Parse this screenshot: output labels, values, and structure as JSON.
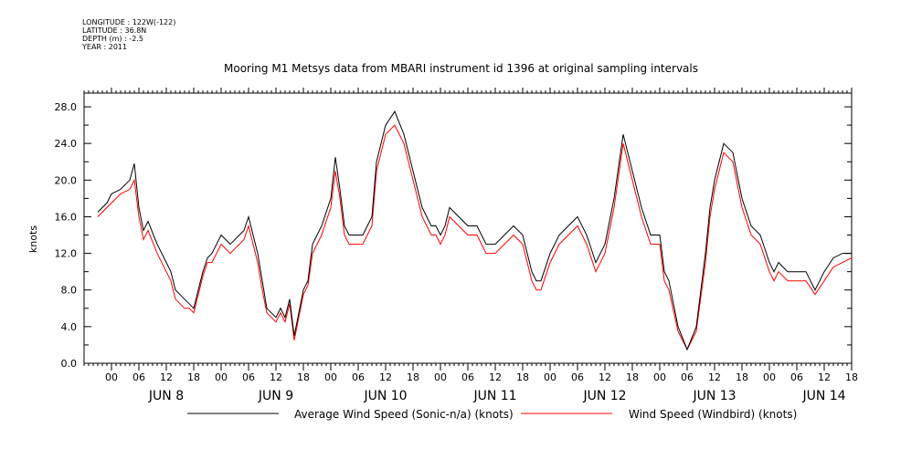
{
  "header": {
    "longitude": "LONGITUDE : 122W(-122)",
    "latitude": "LATITUDE : 36.8N",
    "depth": "DEPTH (m) : -2.5",
    "year": "YEAR : 2011"
  },
  "chart_data": {
    "type": "line",
    "title": "Mooring M1 Metsys data from MBARI instrument id 1396 at original sampling intervals",
    "ylabel": "knots",
    "xlabel": "",
    "ylim": [
      0,
      29.5
    ],
    "y_ticks": [
      "0.0",
      "4.0",
      "8.0",
      "12.0",
      "16.0",
      "20.0",
      "24.0",
      "28.0"
    ],
    "y_tick_values": [
      0,
      4,
      8,
      12,
      16,
      20,
      24,
      28
    ],
    "x_range_hours": [
      -6,
      162
    ],
    "hour_tick_labels": [
      "00",
      "06",
      "12",
      "18",
      "00",
      "06",
      "12",
      "18",
      "00",
      "06",
      "12",
      "18",
      "00",
      "06",
      "12",
      "18",
      "00",
      "06",
      "12",
      "18",
      "00",
      "06",
      "12",
      "18",
      "00",
      "06",
      "12",
      "18"
    ],
    "hour_tick_values": [
      0,
      6,
      12,
      18,
      24,
      30,
      36,
      42,
      48,
      54,
      60,
      66,
      72,
      78,
      84,
      90,
      96,
      102,
      108,
      114,
      120,
      126,
      132,
      138,
      144,
      150,
      156,
      162
    ],
    "day_labels": [
      "JUN  8",
      "JUN  9",
      "JUN 10",
      "JUN 11",
      "JUN 12",
      "JUN 13",
      "JUN 14"
    ],
    "day_label_hours": [
      12,
      36,
      60,
      84,
      108,
      132,
      156
    ],
    "x_unit": "hours since JUN 8 00:00",
    "series": [
      {
        "name": "Average Wind Speed (Sonic-n/a) (knots)",
        "color": "#000000",
        "x": [
          -3,
          -1,
          0,
          2,
          4,
          5,
          6,
          7,
          8,
          10,
          12,
          13,
          14,
          16,
          17,
          18,
          19,
          20,
          21,
          22,
          24,
          26,
          28,
          29,
          30,
          31,
          32,
          33,
          34,
          36,
          37,
          38,
          39,
          40,
          42,
          43,
          44,
          45,
          46,
          48,
          49,
          50,
          51,
          52,
          54,
          55,
          56,
          57,
          58,
          60,
          62,
          64,
          66,
          68,
          70,
          71,
          72,
          73,
          74,
          76,
          78,
          80,
          82,
          84,
          86,
          88,
          90,
          92,
          93,
          94,
          96,
          98,
          100,
          102,
          104,
          106,
          108,
          110,
          112,
          114,
          116,
          118,
          120,
          121,
          122,
          124,
          126,
          128,
          130,
          131,
          132,
          133,
          134,
          136,
          138,
          140,
          142,
          144,
          145,
          146,
          148,
          150,
          152,
          154,
          156,
          158,
          160,
          162
        ],
        "y": [
          16.5,
          17.5,
          18.5,
          19,
          20,
          21.8,
          17,
          14.5,
          15.5,
          13,
          11,
          10,
          8,
          7,
          6.5,
          6,
          8,
          10,
          11.5,
          12,
          14,
          13,
          14,
          14.5,
          16,
          14,
          12,
          9,
          6,
          5,
          6,
          5,
          7,
          3,
          8,
          9,
          13,
          14,
          15,
          18,
          22.5,
          19,
          15,
          14,
          14,
          14,
          15,
          16,
          22,
          26,
          27.5,
          25,
          21,
          17,
          15,
          15,
          14,
          15,
          17,
          16,
          15,
          15,
          13,
          13,
          14,
          15,
          14,
          10,
          9,
          9,
          12,
          14,
          15,
          16,
          14,
          11,
          13,
          18,
          25,
          21,
          17,
          14,
          14,
          10,
          9,
          4,
          1.5,
          4,
          12,
          17,
          20,
          22,
          24,
          23,
          18,
          15,
          14,
          11,
          10,
          11,
          10,
          10,
          10,
          8,
          10,
          11.5,
          12,
          12
        ],
        "note": "values approximate; real data is a dense time series"
      },
      {
        "name": "Wind Speed (Windbird) (knots)",
        "color": "#ff0000",
        "x": [
          -3,
          -1,
          0,
          2,
          4,
          5,
          6,
          7,
          8,
          10,
          12,
          13,
          14,
          16,
          17,
          18,
          19,
          20,
          21,
          22,
          24,
          26,
          28,
          29,
          30,
          31,
          32,
          33,
          34,
          36,
          37,
          38,
          39,
          40,
          42,
          43,
          44,
          45,
          46,
          48,
          49,
          50,
          51,
          52,
          54,
          55,
          56,
          57,
          58,
          60,
          62,
          64,
          66,
          68,
          70,
          71,
          72,
          73,
          74,
          76,
          78,
          80,
          82,
          84,
          86,
          88,
          90,
          92,
          93,
          94,
          96,
          98,
          100,
          102,
          104,
          106,
          108,
          110,
          112,
          114,
          116,
          118,
          120,
          121,
          122,
          124,
          126,
          128,
          130,
          131,
          132,
          133,
          134,
          136,
          138,
          140,
          142,
          144,
          145,
          146,
          148,
          150,
          152,
          154,
          156,
          158,
          160,
          162
        ],
        "y": [
          16,
          17,
          17.5,
          18.5,
          19,
          20,
          16,
          13.5,
          14.5,
          12,
          10,
          9,
          7,
          6,
          6,
          5.5,
          7.5,
          9.5,
          11,
          11,
          13,
          12,
          13,
          13.5,
          15,
          13,
          11,
          8,
          5.5,
          4.5,
          5.5,
          4.5,
          6.5,
          2.5,
          7.5,
          8.5,
          12,
          13,
          14,
          17,
          21,
          18,
          14,
          13,
          13,
          13,
          14,
          15,
          21,
          25,
          26,
          24,
          20,
          16,
          14,
          14,
          13,
          14,
          16,
          15,
          14,
          14,
          12,
          12,
          13,
          14,
          13,
          9,
          8,
          8,
          11,
          13,
          14,
          15,
          13,
          10,
          12,
          17,
          24,
          20,
          16,
          13,
          13,
          9,
          8,
          3.5,
          1.5,
          3.5,
          11,
          16,
          19,
          21,
          23,
          22,
          17,
          14,
          13,
          10,
          9,
          10,
          9,
          9,
          9,
          7.5,
          9,
          10.5,
          11,
          11.5
        ]
      }
    ]
  },
  "legend": {
    "black_label": "Average Wind Speed (Sonic-n/a) (knots)",
    "red_label": "Wind Speed (Windbird) (knots)"
  }
}
